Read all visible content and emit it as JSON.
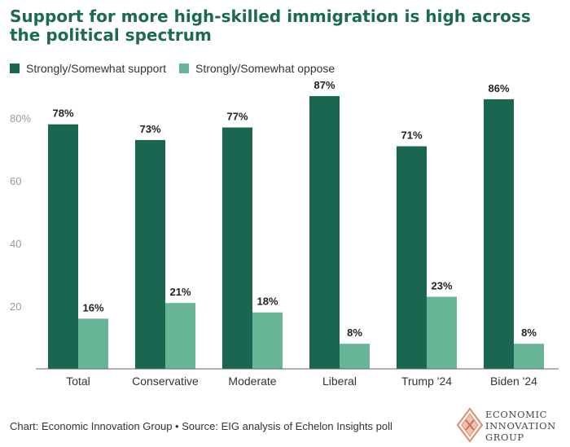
{
  "title": "Support for more high-skilled immigration is high across the political spectrum",
  "footer": "Chart: Economic Innovation Group • Source: EIG analysis of Echelon Insights poll",
  "logo": {
    "line1": "ECONOMIC",
    "line2": "INNOVATION",
    "line3": "GROUP"
  },
  "colors": {
    "support": "#1b6650",
    "oppose": "#67b596",
    "title": "#1b6b4c"
  },
  "chart_data": {
    "type": "bar",
    "categories": [
      "Total",
      "Conservative",
      "Moderate",
      "Liberal",
      "Trump '24",
      "Biden '24"
    ],
    "series": [
      {
        "name": "Strongly/Somewhat support",
        "values": [
          78,
          73,
          77,
          87,
          71,
          86
        ]
      },
      {
        "name": "Strongly/Somewhat oppose",
        "values": [
          16,
          21,
          18,
          8,
          23,
          8
        ]
      }
    ],
    "data_labels": {
      "support": [
        "78%",
        "73%",
        "77%",
        "87%",
        "71%",
        "86%"
      ],
      "oppose": [
        "16%",
        "21%",
        "18%",
        "8%",
        "23%",
        "8%"
      ]
    },
    "yticks": [
      20,
      40,
      60,
      80
    ],
    "ytick_labels": [
      "20",
      "40",
      "60",
      "80%"
    ],
    "ylim": [
      0,
      90
    ],
    "legend": "top-left",
    "grid": false
  }
}
